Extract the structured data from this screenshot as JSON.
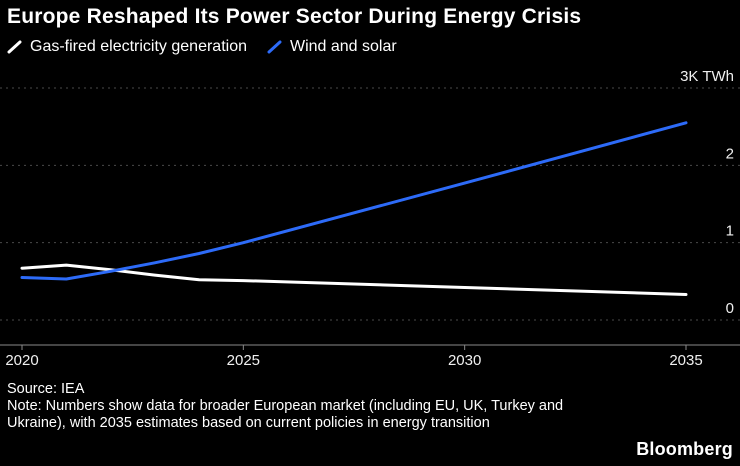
{
  "header": {
    "title": "Europe Reshaped Its Power Sector During Energy Crisis"
  },
  "chart_data": {
    "type": "line",
    "title": "Europe Reshaped Its Power Sector During Energy Crisis",
    "x": [
      2020,
      2021,
      2022,
      2023,
      2024,
      2025,
      2030,
      2035
    ],
    "x_range": [
      2020,
      2035
    ],
    "ylim": [
      0,
      3
    ],
    "ylabel_unit": "TWh (thousands)",
    "grid": "horizontal-dotted",
    "legend_position": "top-left",
    "series": [
      {
        "name": "Gas-fired electricity generation",
        "color": "#ffffff",
        "values": [
          0.67,
          0.71,
          0.65,
          0.58,
          0.52,
          0.51,
          0.42,
          0.33
        ]
      },
      {
        "name": "Wind and solar",
        "color": "#2d6bf8",
        "values": [
          0.55,
          0.53,
          0.63,
          0.74,
          0.86,
          1.0,
          1.77,
          2.55
        ]
      }
    ],
    "yticks": [
      {
        "value": 3,
        "label": "3K TWh"
      },
      {
        "value": 2,
        "label": "2"
      },
      {
        "value": 1,
        "label": "1"
      },
      {
        "value": 0,
        "label": "0"
      }
    ],
    "xticks": [
      {
        "value": 2020,
        "label": "2020"
      },
      {
        "value": 2025,
        "label": "2025"
      },
      {
        "value": 2030,
        "label": "2030"
      },
      {
        "value": 2035,
        "label": "2035"
      }
    ]
  },
  "footer": {
    "source": "Source: IEA",
    "note": "Note: Numbers show data for broader European market (including EU, UK, Turkey and Ukraine), with 2035 estimates based on current policies in energy transition",
    "brand": "Bloomberg"
  },
  "colors": {
    "background": "#000000",
    "gridline": "#4a4a4a",
    "axis_line": "#8a8a8a",
    "tick_text": "#f0f0f0",
    "gas_line": "#ffffff",
    "wind_solar_line": "#2d6bf8"
  }
}
